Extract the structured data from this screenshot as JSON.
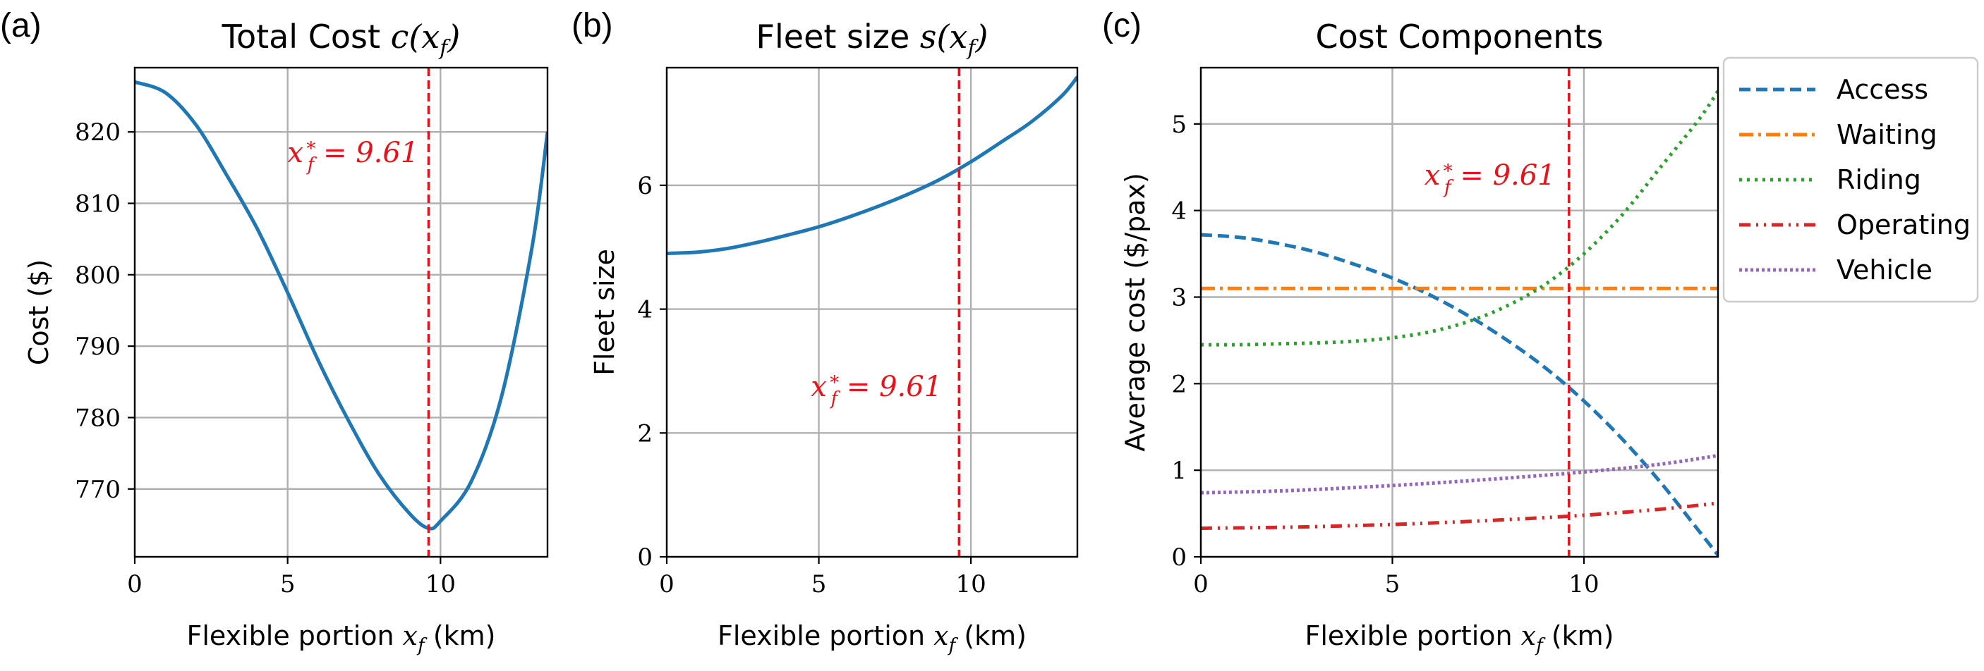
{
  "figure": {
    "colors": {
      "blue": "#1f77b4",
      "orange": "#ff7f0e",
      "green": "#2ca02c",
      "red": "#d62728",
      "purple": "#9467bd",
      "optimum_line": "#e8131a"
    }
  },
  "chart_data": [
    {
      "id": "a",
      "panel_label": "(a)",
      "type": "line",
      "title_text": "Total Cost ",
      "title_math": "c(x_f)",
      "xlabel": "Flexible portion x_f (km)",
      "ylabel": "Cost ($)",
      "xlim": [
        0,
        13.5
      ],
      "ylim": [
        760.5,
        829
      ],
      "xticks": [
        0,
        5,
        10
      ],
      "yticks": [
        770,
        780,
        790,
        800,
        810,
        820
      ],
      "optimum": {
        "x": 9.61,
        "label": "x*_f = 9.61"
      },
      "series": [
        {
          "name": "Total Cost",
          "color": "#1f77b4",
          "dash": "solid",
          "x": [
            0,
            1,
            2,
            3,
            4,
            5,
            6,
            7,
            8,
            9,
            9.61,
            10,
            11,
            12,
            13,
            13.5
          ],
          "y": [
            827,
            825.5,
            821,
            814,
            806.5,
            797.5,
            788,
            779.5,
            772,
            766.5,
            764.5,
            765.5,
            771,
            783,
            804,
            820
          ]
        }
      ]
    },
    {
      "id": "b",
      "panel_label": "(b)",
      "type": "line",
      "title_text": "Fleet size ",
      "title_math": "s(x_f)",
      "xlabel": "Flexible portion x_f (km)",
      "ylabel": "Fleet size",
      "xlim": [
        0,
        13.5
      ],
      "ylim": [
        0,
        7.9
      ],
      "xticks": [
        0,
        5,
        10
      ],
      "yticks": [
        0,
        2,
        4,
        6
      ],
      "optimum": {
        "x": 9.61,
        "label": "x*_f = 9.61"
      },
      "series": [
        {
          "name": "Fleet size",
          "color": "#1f77b4",
          "dash": "solid",
          "x": [
            0,
            1,
            2,
            3,
            4,
            5,
            6,
            7,
            8,
            9,
            10,
            11,
            12,
            13,
            13.5
          ],
          "y": [
            4.9,
            4.92,
            4.98,
            5.08,
            5.2,
            5.33,
            5.49,
            5.67,
            5.87,
            6.1,
            6.38,
            6.7,
            7.03,
            7.45,
            7.75
          ]
        }
      ]
    },
    {
      "id": "c",
      "panel_label": "(c)",
      "type": "line",
      "title_text": "Cost Components",
      "title_math": "",
      "xlabel": "Flexible portion x_f (km)",
      "ylabel": "Average cost ($/pax)",
      "xlim": [
        0,
        13.5
      ],
      "ylim": [
        0,
        5.65
      ],
      "xticks": [
        0,
        5,
        10
      ],
      "yticks": [
        0,
        1,
        2,
        3,
        4,
        5
      ],
      "optimum": {
        "x": 9.61,
        "label": "x*_f = 9.61"
      },
      "legend_position": "outside-right",
      "series": [
        {
          "name": "Access",
          "color": "#1f77b4",
          "dash": "dashed",
          "x": [
            0,
            1,
            2,
            3,
            4,
            5,
            6,
            7,
            8,
            9,
            10,
            11,
            12,
            13,
            13.5
          ],
          "y": [
            3.72,
            3.69,
            3.62,
            3.52,
            3.38,
            3.22,
            3.02,
            2.78,
            2.5,
            2.18,
            1.8,
            1.36,
            0.86,
            0.3,
            0.02
          ]
        },
        {
          "name": "Waiting",
          "color": "#ff7f0e",
          "dash": "dashdot",
          "x": [
            0,
            13.5
          ],
          "y": [
            3.1,
            3.1
          ]
        },
        {
          "name": "Riding",
          "color": "#2ca02c",
          "dash": "dotted",
          "x": [
            0,
            1,
            2,
            3,
            4,
            5,
            6,
            7,
            8,
            9,
            10,
            11,
            12,
            13,
            13.5
          ],
          "y": [
            2.45,
            2.45,
            2.46,
            2.47,
            2.49,
            2.53,
            2.6,
            2.72,
            2.9,
            3.15,
            3.5,
            3.95,
            4.5,
            5.05,
            5.38
          ]
        },
        {
          "name": "Operating",
          "color": "#d62728",
          "dash": "dashdotdot",
          "x": [
            0,
            2,
            4,
            6,
            8,
            10,
            12,
            13.5
          ],
          "y": [
            0.33,
            0.34,
            0.36,
            0.39,
            0.43,
            0.48,
            0.55,
            0.62
          ]
        },
        {
          "name": "Vehicle",
          "color": "#9467bd",
          "dash": "dotted-dense",
          "x": [
            0,
            2,
            4,
            6,
            8,
            10,
            12,
            13.5
          ],
          "y": [
            0.74,
            0.76,
            0.8,
            0.85,
            0.91,
            0.98,
            1.07,
            1.17
          ]
        }
      ]
    }
  ]
}
